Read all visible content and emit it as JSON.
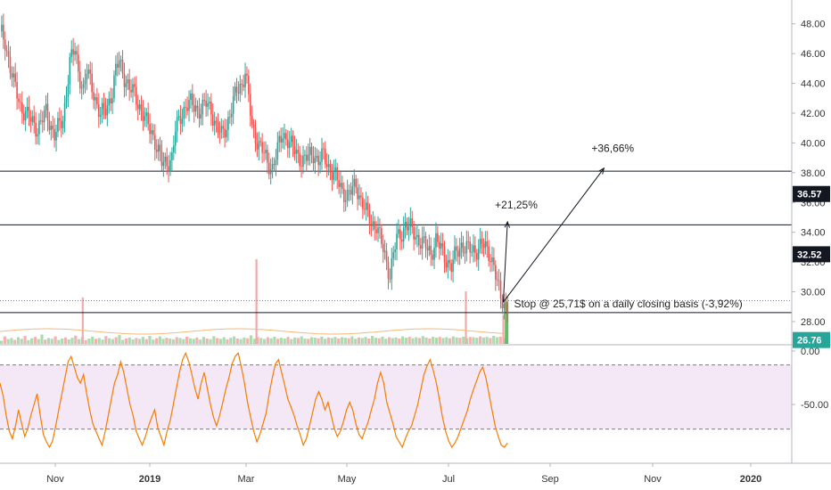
{
  "chart_data": [
    {
      "type": "candlestick",
      "ylim": [
        26.5,
        49.6
      ],
      "y_ticks": [
        "48.00",
        "46.00",
        "44.00",
        "42.00",
        "40.00",
        "38.00",
        "36.00",
        "34.00",
        "32.00",
        "30.00",
        "28.00"
      ],
      "x_ticks": [
        "Nov",
        "2019",
        "Mar",
        "May",
        "Jul",
        "Sep",
        "Nov",
        "2020"
      ],
      "price_path": [
        [
          0,
          47.5
        ],
        [
          3,
          46.8
        ],
        [
          8,
          44.0
        ],
        [
          12,
          42.5
        ],
        [
          18,
          41.5
        ],
        [
          22,
          41.0
        ],
        [
          27,
          42.0
        ],
        [
          32,
          40.6
        ],
        [
          37,
          41.5
        ],
        [
          41,
          45.5
        ],
        [
          44,
          46.2
        ],
        [
          46,
          44.8
        ],
        [
          49,
          43.6
        ],
        [
          51,
          44.8
        ],
        [
          55,
          43.4
        ],
        [
          59,
          41.8
        ],
        [
          62,
          42.2
        ],
        [
          66,
          43.5
        ],
        [
          68,
          44.8
        ],
        [
          70,
          45.5
        ],
        [
          72,
          44.8
        ],
        [
          76,
          43.6
        ],
        [
          79,
          43.3
        ],
        [
          83,
          42.2
        ],
        [
          86,
          41.3
        ],
        [
          89,
          40.8
        ],
        [
          92,
          39.8
        ],
        [
          95,
          38.6
        ],
        [
          98,
          38.7
        ],
        [
          101,
          39.0
        ],
        [
          103,
          40.8
        ],
        [
          106,
          41.8
        ],
        [
          109,
          42.5
        ],
        [
          112,
          42.6
        ],
        [
          115,
          42.4
        ],
        [
          118,
          42.2
        ],
        [
          121,
          42.6
        ],
        [
          124,
          42.3
        ],
        [
          127,
          41.0
        ],
        [
          130,
          40.5
        ],
        [
          133,
          41.2
        ],
        [
          136,
          42.3
        ],
        [
          139,
          43.5
        ],
        [
          142,
          44.0
        ],
        [
          144,
          44.8
        ],
        [
          146,
          43.0
        ],
        [
          148,
          41.0
        ],
        [
          151,
          40.2
        ],
        [
          154,
          39.5
        ],
        [
          157,
          38.6
        ],
        [
          160,
          38.4
        ],
        [
          163,
          39.5
        ],
        [
          166,
          40.6
        ],
        [
          169,
          40.3
        ],
        [
          172,
          39.6
        ],
        [
          175,
          39.1
        ],
        [
          178,
          38.9
        ],
        [
          181,
          39.0
        ],
        [
          184,
          39.3
        ],
        [
          187,
          38.8
        ],
        [
          190,
          39.1
        ],
        [
          193,
          38.4
        ],
        [
          196,
          38.0
        ],
        [
          198,
          37.4
        ],
        [
          201,
          36.8
        ],
        [
          204,
          36.5
        ],
        [
          207,
          36.8
        ],
        [
          209,
          37.2
        ],
        [
          212,
          36.2
        ],
        [
          215,
          35.3
        ],
        [
          218,
          34.6
        ],
        [
          221,
          34.5
        ],
        [
          224,
          33.2
        ],
        [
          227,
          32.0
        ],
        [
          229,
          31.2
        ],
        [
          231,
          32.5
        ],
        [
          233,
          33.5
        ],
        [
          236,
          34.0
        ],
        [
          238,
          34.6
        ],
        [
          241,
          34.2
        ],
        [
          244,
          33.8
        ],
        [
          247,
          33.4
        ],
        [
          250,
          33.0
        ],
        [
          253,
          32.6
        ],
        [
          256,
          33.5
        ],
        [
          259,
          32.8
        ],
        [
          262,
          32.2
        ],
        [
          265,
          31.7
        ],
        [
          268,
          32.6
        ],
        [
          271,
          33.2
        ],
        [
          274,
          32.9
        ],
        [
          277,
          32.7
        ],
        [
          280,
          32.9
        ],
        [
          283,
          33.2
        ],
        [
          286,
          32.7
        ],
        [
          288,
          32.5
        ],
        [
          290,
          31.8
        ],
        [
          292,
          30.5
        ],
        [
          294,
          29.5
        ],
        [
          296,
          29.2
        ],
        [
          298,
          29.1
        ]
      ],
      "volume_series": [
        0.12,
        0.28,
        0.18,
        0.22,
        0.15,
        0.25,
        0.19,
        0.3,
        0.14,
        0.21,
        0.26,
        0.18,
        0.35,
        0.16,
        0.22,
        0.19,
        0.28,
        0.15,
        0.2,
        0.24,
        0.17,
        0.23,
        0.31,
        0.18,
        0.26,
        0.14,
        0.2,
        0.27,
        0.19,
        0.22,
        0.16,
        0.29,
        0.21,
        0.18,
        0.25,
        0.33,
        0.15,
        0.2,
        0.24,
        0.17,
        0.22,
        0.19,
        0.26,
        0.18,
        0.3,
        0.16,
        0.21,
        0.28,
        0.19,
        0.23,
        0.2,
        0.17,
        0.25,
        0.22,
        0.18,
        0.27,
        0.21,
        0.19,
        0.24,
        0.16,
        0.26,
        0.2,
        0.18,
        0.29,
        0.22,
        0.19,
        0.25,
        0.17,
        0.23,
        0.28,
        0.2,
        0.18,
        0.24,
        0.21,
        0.32,
        0.19,
        0.26,
        0.22,
        0.18,
        0.25,
        0.21,
        0.27,
        0.19,
        0.23,
        0.2,
        0.26,
        0.18,
        0.24,
        0.22,
        0.28,
        0.2,
        0.19,
        0.25,
        0.23,
        0.21,
        0.27,
        0.19,
        0.24,
        0.22,
        0.26,
        0.2,
        0.25,
        0.23,
        0.21,
        0.28,
        0.19,
        0.24,
        0.22,
        0.26,
        0.2,
        0.3,
        0.23,
        0.21,
        0.27,
        0.19,
        0.25,
        0.22,
        0.24,
        0.2,
        0.28,
        0.23,
        0.26,
        0.21,
        0.25,
        0.22,
        0.29,
        0.24,
        0.2,
        0.27,
        0.23,
        0.26,
        0.22,
        0.25,
        0.21,
        0.28,
        0.24,
        0.23,
        0.27,
        0.22,
        0.26,
        0.25,
        0.23,
        0.28,
        0.24,
        0.26,
        0.22,
        0.3,
        0.25,
        0.27,
        0.23
      ],
      "volume_spikes": [
        [
          48,
          0.55
        ],
        [
          150,
          1.0
        ],
        [
          273,
          0.62
        ],
        [
          295,
          0.34
        ]
      ],
      "last_volume_bar": {
        "index": 298,
        "value": 1.0
      },
      "horizontal_levels": [
        38.1,
        34.5,
        28.6
      ],
      "current_price_dotted": 29.4,
      "annotations": [
        {
          "text": "+36,66%",
          "target_index": 318,
          "target_price": 38.3,
          "label_price": 39.4
        },
        {
          "text": "+21,25%",
          "target_index": 298,
          "target_price": 34.7,
          "label_price": 35.6
        },
        {
          "text": "Stop @ 25,71$ on a daily closing basis (-3,92%)",
          "label_price": 29.2
        }
      ],
      "arrow_origin": {
        "index": 284,
        "price": 29.3
      },
      "price_badges": [
        {
          "label": "36.57",
          "price": 36.57,
          "color": "#131722"
        },
        {
          "label": "32.52",
          "price": 32.52,
          "color": "#131722"
        },
        {
          "label": "26.76",
          "price": 26.76,
          "color": "#26a69a"
        }
      ]
    },
    {
      "type": "line",
      "name": "oscillator",
      "ylim": [
        -105,
        5
      ],
      "y_ticks": [
        "0.00",
        "-50.00"
      ],
      "band": [
        -13,
        -73
      ],
      "color": "#f57c00",
      "values": [
        -30,
        -42,
        -60,
        -75,
        -82,
        -70,
        -55,
        -68,
        -80,
        -72,
        -60,
        -50,
        -40,
        -60,
        -78,
        -85,
        -90,
        -84,
        -70,
        -55,
        -40,
        -25,
        -10,
        -5,
        -15,
        -25,
        -30,
        -22,
        -40,
        -55,
        -68,
        -75,
        -82,
        -88,
        -75,
        -60,
        -45,
        -30,
        -22,
        -10,
        -20,
        -35,
        -50,
        -60,
        -75,
        -82,
        -88,
        -80,
        -70,
        -62,
        -55,
        -72,
        -80,
        -88,
        -75,
        -65,
        -50,
        -35,
        -20,
        -8,
        -2,
        -10,
        -22,
        -35,
        -45,
        -30,
        -20,
        -35,
        -50,
        -62,
        -70,
        -60,
        -48,
        -35,
        -25,
        -12,
        -5,
        -2,
        -15,
        -30,
        -48,
        -62,
        -75,
        -85,
        -78,
        -68,
        -58,
        -40,
        -25,
        -12,
        -8,
        -20,
        -32,
        -45,
        -52,
        -60,
        -70,
        -78,
        -88,
        -82,
        -70,
        -58,
        -45,
        -38,
        -45,
        -55,
        -48,
        -60,
        -72,
        -80,
        -75,
        -66,
        -55,
        -48,
        -55,
        -68,
        -78,
        -82,
        -74,
        -66,
        -55,
        -45,
        -30,
        -20,
        -30,
        -48,
        -58,
        -68,
        -80,
        -85,
        -90,
        -82,
        -75,
        -70,
        -60,
        -50,
        -36,
        -22,
        -14,
        -8,
        -18,
        -30,
        -45,
        -62,
        -75,
        -84,
        -90,
        -86,
        -80,
        -72,
        -64,
        -56,
        -45,
        -36,
        -28,
        -20,
        -15,
        -25,
        -40,
        -55,
        -70,
        -80,
        -88,
        -90,
        -86
      ]
    }
  ]
}
